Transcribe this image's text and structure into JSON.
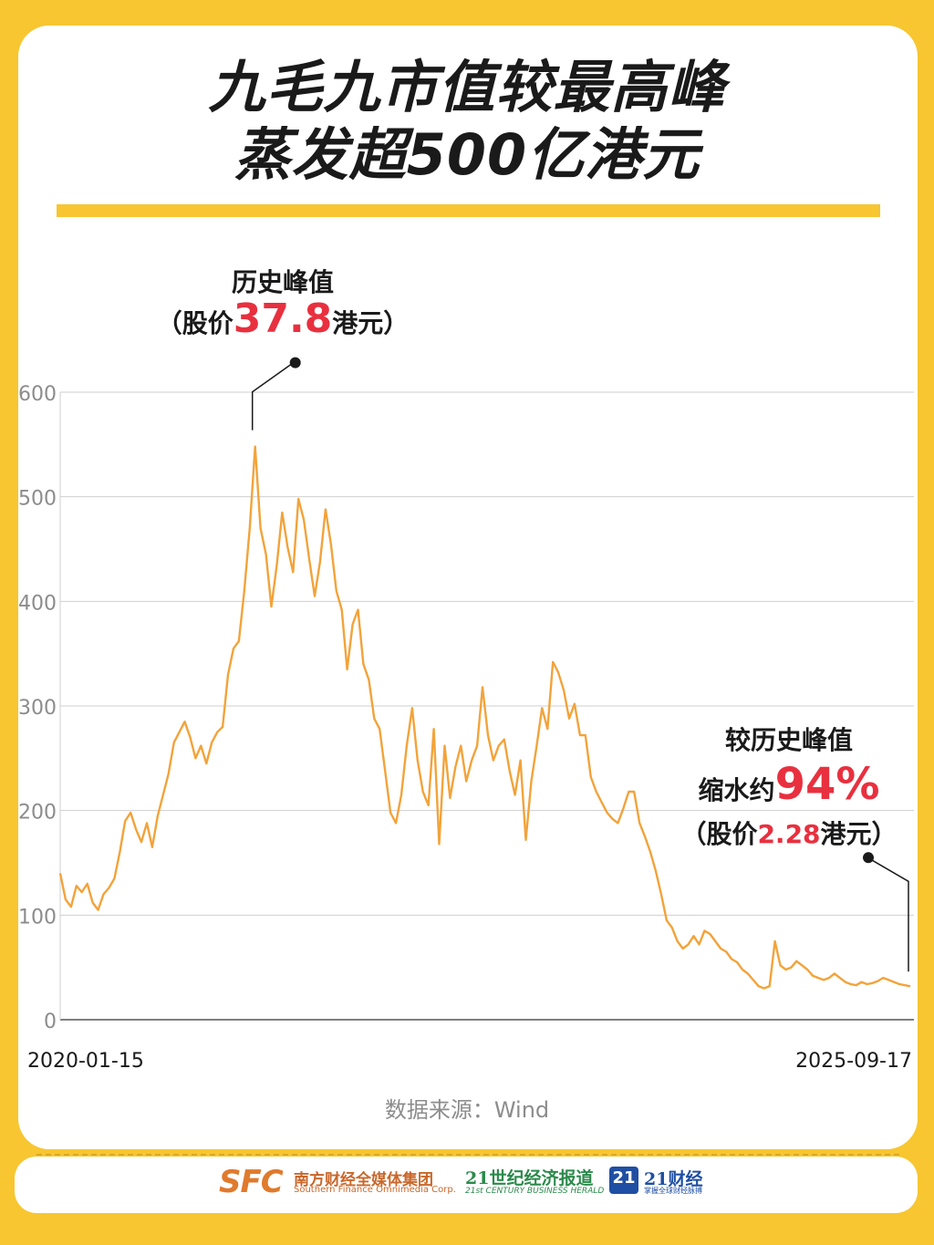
{
  "title": {
    "line1": "九毛九市值较最高峰",
    "line2": "蒸发超500亿港元"
  },
  "annotations": {
    "peak": {
      "heading": "历史峰值",
      "price_prefix": "（股价",
      "price_value": "37.8",
      "price_suffix": "港元）"
    },
    "latest": {
      "heading": "较历史峰值",
      "shrink_prefix": "缩水约",
      "shrink_value": "94%",
      "price_prefix": "（股价",
      "price_value": "2.28",
      "price_suffix": "港元）"
    }
  },
  "chart_data": {
    "type": "line",
    "title": "",
    "xlabel": "",
    "ylabel": "",
    "x_tick_labels": [
      "2020-01-15",
      "2025-09-17"
    ],
    "y_ticks": [
      0,
      100,
      200,
      300,
      400,
      500,
      600
    ],
    "ylim": [
      0,
      600
    ],
    "grid": true,
    "x_start": "2020-01-15",
    "x_end": "2025-09-17",
    "series": [
      {
        "color": "#f2a33a",
        "values": [
          140,
          115,
          108,
          128,
          122,
          130,
          112,
          105,
          120,
          126,
          135,
          160,
          190,
          198,
          182,
          170,
          188,
          165,
          195,
          215,
          235,
          265,
          275,
          285,
          270,
          250,
          262,
          245,
          265,
          275,
          280,
          330,
          355,
          362,
          410,
          470,
          548,
          470,
          445,
          395,
          435,
          485,
          452,
          428,
          498,
          478,
          440,
          405,
          438,
          488,
          455,
          410,
          392,
          335,
          378,
          392,
          340,
          325,
          288,
          278,
          238,
          198,
          188,
          215,
          262,
          298,
          248,
          218,
          205,
          278,
          168,
          262,
          212,
          242,
          262,
          228,
          248,
          262,
          318,
          272,
          248,
          262,
          268,
          238,
          215,
          248,
          172,
          228,
          262,
          298,
          278,
          342,
          332,
          315,
          288,
          302,
          272,
          272,
          232,
          218,
          208,
          198,
          192,
          188,
          202,
          218,
          218,
          188,
          175,
          160,
          142,
          120,
          95,
          88,
          75,
          68,
          72,
          80,
          72,
          85,
          82,
          75,
          68,
          65,
          58,
          55,
          48,
          44,
          38,
          32,
          30,
          32,
          75,
          52,
          48,
          50,
          56,
          52,
          48,
          42,
          40,
          38,
          40,
          44,
          40,
          36,
          34,
          33,
          36,
          34,
          35,
          37,
          40,
          38,
          36,
          34,
          33,
          32
        ]
      }
    ]
  },
  "source": "数据来源：Wind",
  "footer": {
    "sfc_logo": "SFC",
    "sfc_cn": "南方财经全媒体集团",
    "sfc_en": "Southern Finance Omnimedia Corp.",
    "h21_cn": "21世纪经济报道",
    "h21_en": "21st CENTURY BUSINESS HERALD",
    "c21_badge": "21",
    "c21_cn": "21财经",
    "c21_sub": "掌握全球财经脉搏"
  },
  "colors": {
    "background": "#f7c631",
    "line": "#f2a33a",
    "highlight": "#e8303f"
  }
}
